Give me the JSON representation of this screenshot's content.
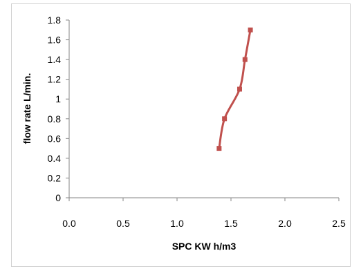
{
  "chart_data": {
    "type": "line",
    "title": "",
    "xlabel": "SPC KW h/m3",
    "ylabel": "flow rate L/min.",
    "xlim": [
      0,
      2.5
    ],
    "ylim": [
      0,
      1.8
    ],
    "x_ticks": [
      "0.0",
      "0.5",
      "1.0",
      "1.5",
      "2.0",
      "2.5"
    ],
    "x_tick_values": [
      0,
      0.5,
      1.0,
      1.5,
      2.0,
      2.5
    ],
    "y_ticks": [
      "0",
      "0.2",
      "0.4",
      "0.6",
      "0.8",
      "1",
      "1.2",
      "1.4",
      "1.6",
      "1.8"
    ],
    "y_tick_values": [
      0,
      0.2,
      0.4,
      0.6,
      0.8,
      1.0,
      1.2,
      1.4,
      1.6,
      1.8
    ],
    "grid": false,
    "legend": "none",
    "series": [
      {
        "color": "#c0504d",
        "marker": "square",
        "x": [
          1.39,
          1.44,
          1.58,
          1.63,
          1.68
        ],
        "y": [
          0.5,
          0.8,
          1.1,
          1.4,
          1.7
        ]
      }
    ]
  }
}
